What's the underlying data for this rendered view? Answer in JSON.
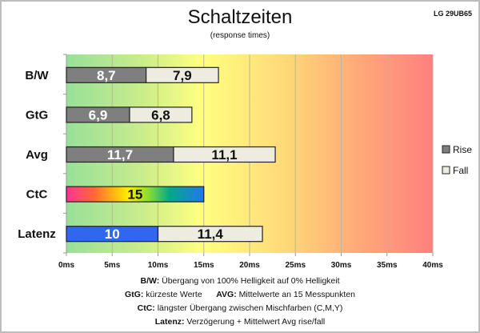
{
  "chart_data": {
    "type": "bar",
    "orientation": "horizontal",
    "stacked": true,
    "title": "Schaltzeiten",
    "subtitle": "(response times)",
    "model": "LG 29UB65",
    "categories": [
      "B/W",
      "GtG",
      "Avg",
      "CtC",
      "Latenz"
    ],
    "series": [
      {
        "name": "Rise",
        "values": [
          8.7,
          6.9,
          11.7,
          null,
          null
        ],
        "labels": [
          "8,7",
          "6,9",
          "11,7",
          "",
          ""
        ],
        "color": "#7f7f7f"
      },
      {
        "name": "Fall",
        "values": [
          7.9,
          6.8,
          11.1,
          null,
          11.4
        ],
        "labels": [
          "7,9",
          "6,8",
          "11,1",
          "",
          "11,4"
        ],
        "color": "#eeece1"
      }
    ],
    "special": [
      {
        "category": "CtC",
        "value": 15,
        "label": "15",
        "fill": "rainbow"
      },
      {
        "category": "Latenz",
        "value": 10,
        "label": "10",
        "color": "#3366ee"
      }
    ],
    "xlim": [
      0,
      40
    ],
    "xticks": [
      "0ms",
      "5ms",
      "10ms",
      "15ms",
      "20ms",
      "25ms",
      "30ms",
      "35ms",
      "40ms"
    ],
    "grid": true,
    "background": "gradient green-yellow-red",
    "legend": "right"
  },
  "notes": [
    {
      "key": "B/W:",
      "text": " Übergang von 100% Helligkeit auf 0% Helligkeit"
    },
    {
      "key": "GtG:",
      "text": " kürzeste Werte",
      "key2": "AVG:",
      "text2": " Mittelwerte an 15 Messpunkten"
    },
    {
      "key": "CtC:",
      "text": " längster Übergang zwischen Mischfarben (C,M,Y)"
    },
    {
      "key": "Latenz:",
      "text": " Verzögerung + Mittelwert Avg rise/fall"
    }
  ]
}
